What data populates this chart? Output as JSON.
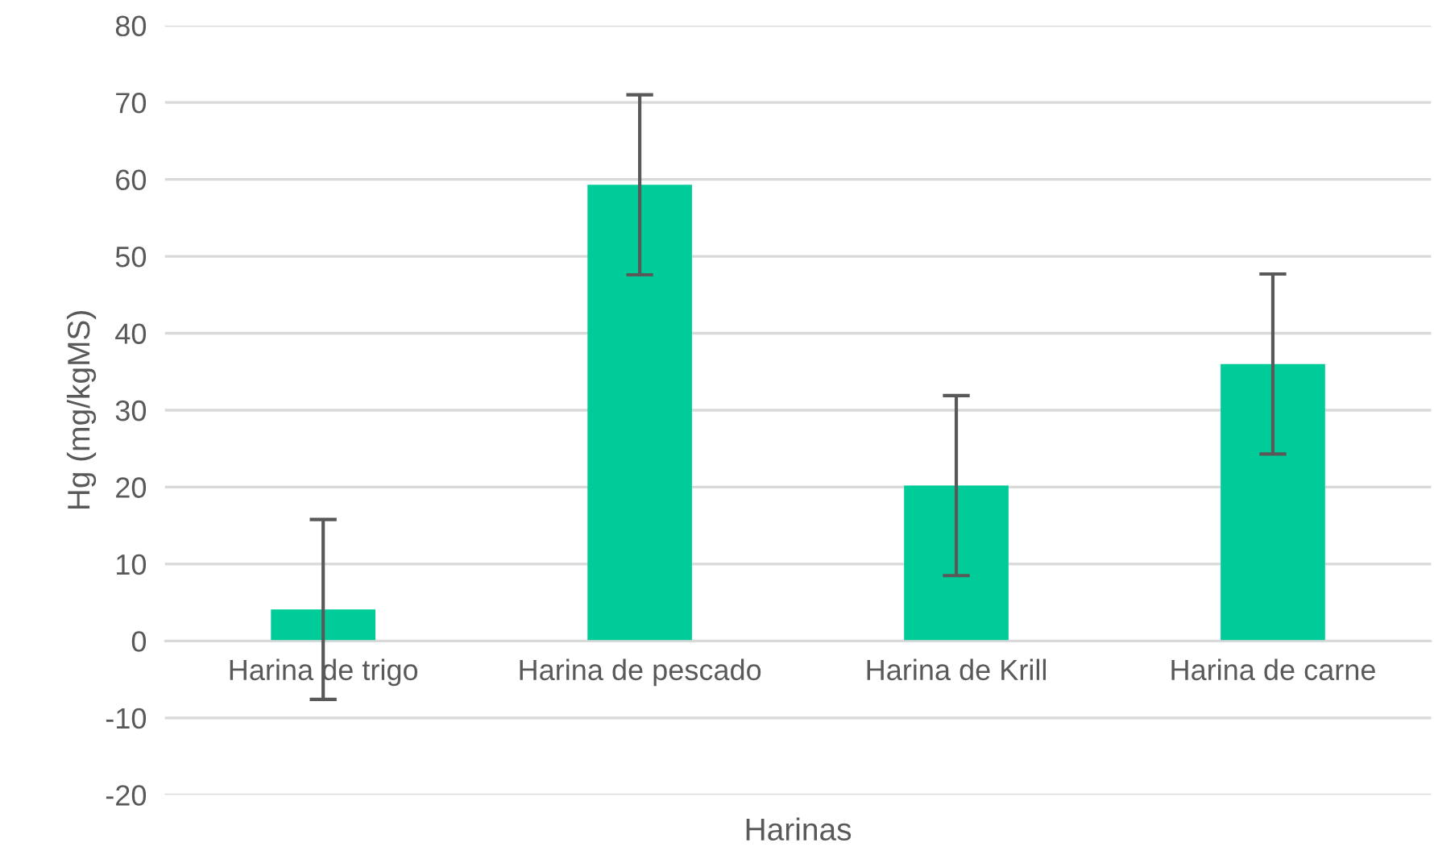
{
  "chart_data": {
    "type": "bar",
    "xlabel": "Harinas",
    "ylabel": "Hg (mg/kgMS)",
    "categories": [
      "Harina de trigo",
      "Harina de pescado",
      "Harina de Krill",
      "Harina de carne"
    ],
    "values": [
      4.1,
      59.3,
      20.2,
      36.0
    ],
    "errors": [
      11.7,
      11.7,
      11.7,
      11.7
    ],
    "color": "#00cc99",
    "ylim": [
      -20,
      80
    ],
    "yticks": [
      -20,
      -10,
      0,
      10,
      20,
      30,
      40,
      50,
      60,
      70,
      80
    ],
    "grid": "y",
    "legend": false
  }
}
